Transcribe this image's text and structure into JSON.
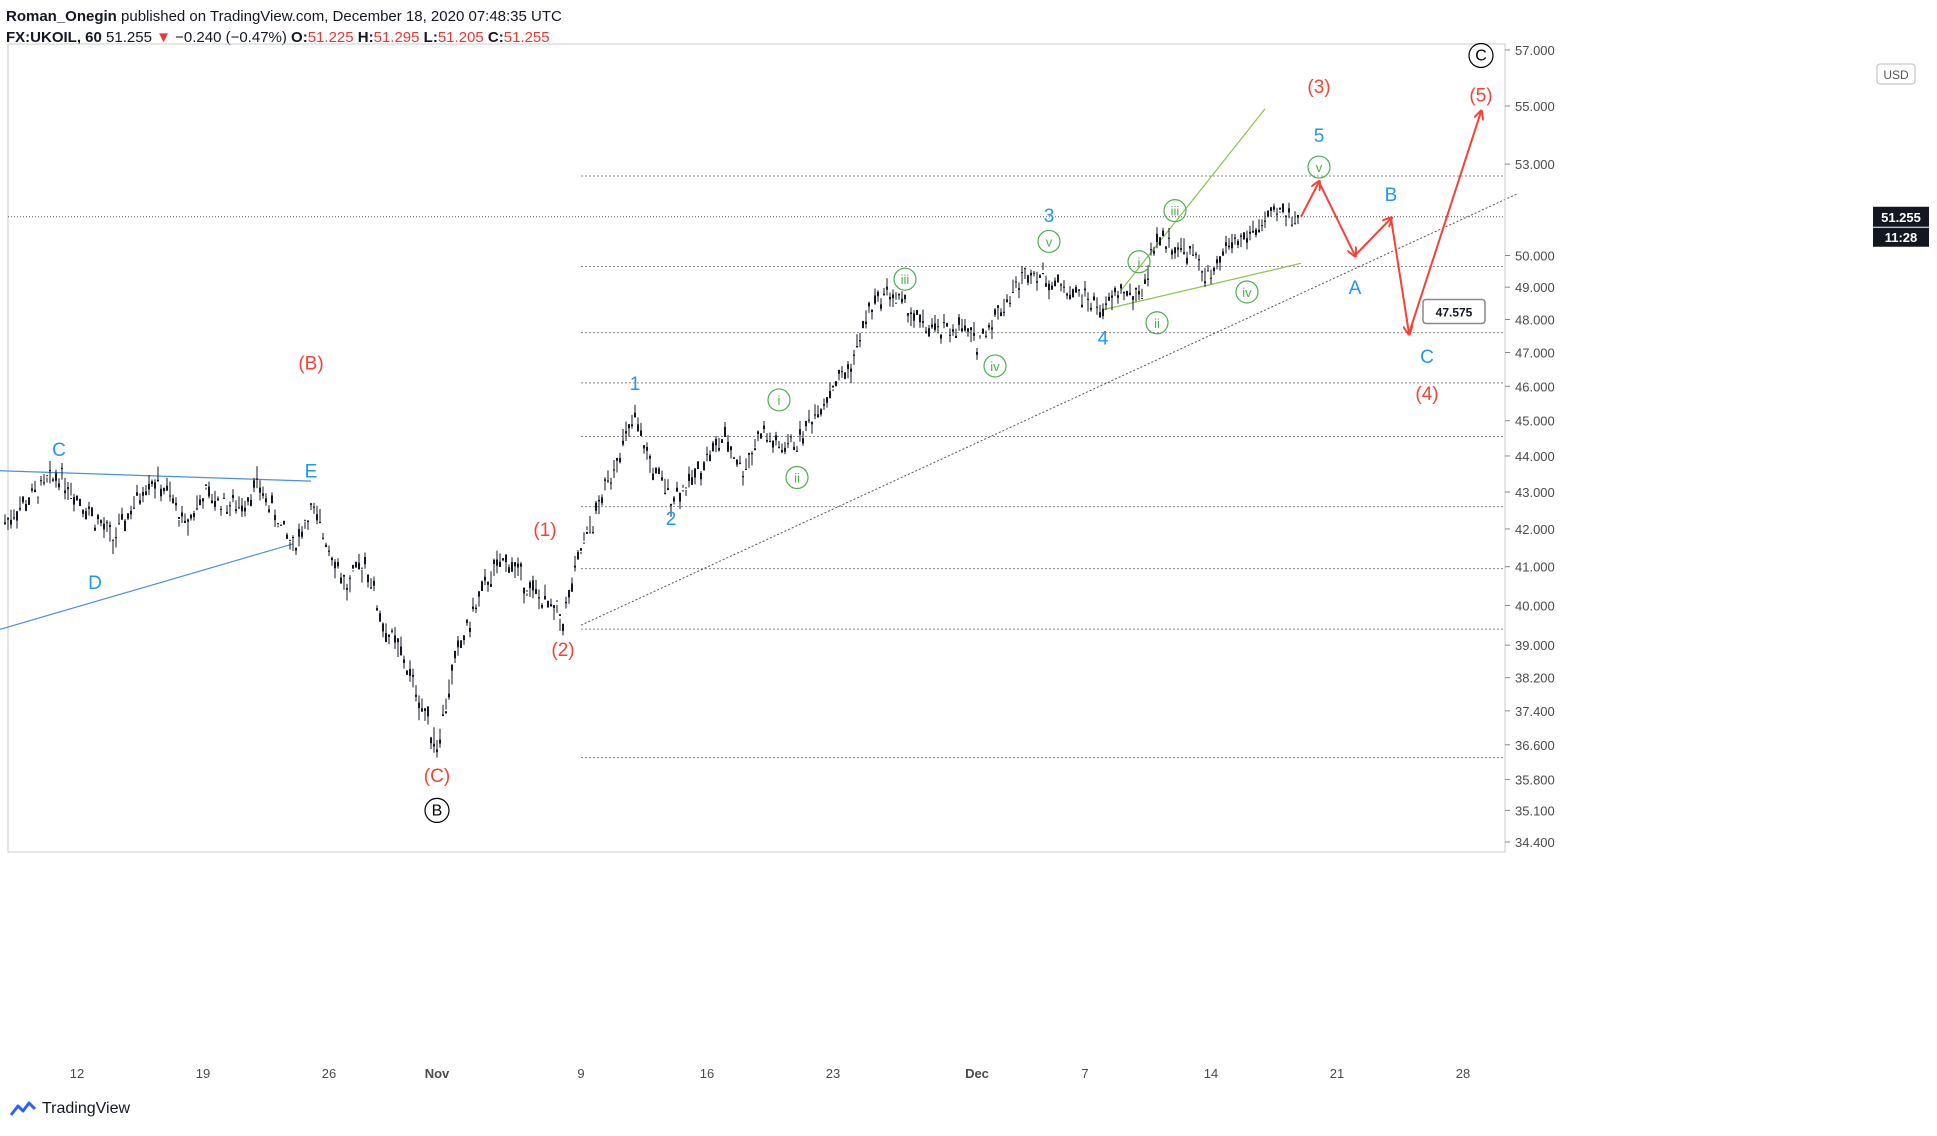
{
  "header": {
    "author": "Roman_Onegin",
    "published_text": "published on TradingView.com, December 18, 2020 07:48:35 UTC",
    "symbol": "FX:UKOIL, 60",
    "last": "51.255",
    "change_arrow": "▼",
    "change": "−0.240 (−0.47%)",
    "o_label": "O:",
    "o_value": "51.225",
    "h_label": "H:",
    "h_value": "51.295",
    "l_label": "L:",
    "l_value": "51.205",
    "c_label": "C:",
    "c_value": "51.255"
  },
  "footer": {
    "brand": "TradingView",
    "logo_icon": "tradingview-logo-icon"
  },
  "chart_data": {
    "type": "candlestick",
    "symbol": "FX:UKOIL",
    "timeframe": "60",
    "currency": "USD",
    "x_ticks": [
      "12",
      "19",
      "26",
      "Nov",
      "9",
      "16",
      "23",
      "Dec",
      "7",
      "14",
      "21",
      "28"
    ],
    "y_ticks": [
      "57.000",
      "55.000",
      "53.000",
      "51.255",
      "50.000",
      "49.000",
      "48.000",
      "47.000",
      "46.000",
      "45.000",
      "44.000",
      "43.000",
      "42.000",
      "41.000",
      "40.000",
      "39.000",
      "38.200",
      "37.400",
      "36.600",
      "35.800",
      "35.100",
      "34.400"
    ],
    "last_price_label": "51.255",
    "countdown_label": "11:28",
    "ylim": [
      34.1,
      57.2
    ],
    "price_path": [
      [
        "Oct 8",
        42.2
      ],
      [
        "Oct 10",
        43.1
      ],
      [
        "Oct 11",
        43.5
      ],
      [
        "Oct 13",
        42.3
      ],
      [
        "Oct 14",
        41.7
      ],
      [
        "Oct 15",
        42.5
      ],
      [
        "Oct 16",
        43.4
      ],
      [
        "Oct 17",
        43.0
      ],
      [
        "Oct 18",
        42.1
      ],
      [
        "Oct 19",
        42.9
      ],
      [
        "Oct 21",
        42.6
      ],
      [
        "Oct 22",
        43.2
      ],
      [
        "Oct 23",
        42.4
      ],
      [
        "Oct 24",
        41.5
      ],
      [
        "Oct 25",
        42.5
      ],
      [
        "Oct 26",
        41.6
      ],
      [
        "Oct 27",
        40.4
      ],
      [
        "Oct 28",
        41.2
      ],
      [
        "Oct 29",
        39.5
      ],
      [
        "Oct 30",
        38.8
      ],
      [
        "Oct 31",
        37.7
      ],
      [
        "Nov 1",
        36.6
      ],
      [
        "Nov 2",
        38.6
      ],
      [
        "Nov 3",
        39.8
      ],
      [
        "Nov 4",
        40.8
      ],
      [
        "Nov 5",
        41.2
      ],
      [
        "Nov 6",
        40.5
      ],
      [
        "Nov 8",
        39.6
      ],
      [
        "Nov 9",
        41.4
      ],
      [
        "Nov 10",
        42.6
      ],
      [
        "Nov 11",
        44.0
      ],
      [
        "Nov 12",
        45.0
      ],
      [
        "Nov 13",
        43.6
      ],
      [
        "Nov 14",
        42.9
      ],
      [
        "Nov 15",
        43.2
      ],
      [
        "Nov 16",
        44.0
      ],
      [
        "Nov 17",
        44.5
      ],
      [
        "Nov 18",
        43.6
      ],
      [
        "Nov 19",
        44.7
      ],
      [
        "Nov 20",
        44.2
      ],
      [
        "Nov 21",
        44.4
      ],
      [
        "Nov 22",
        45.2
      ],
      [
        "Nov 23",
        46.0
      ],
      [
        "Nov 24",
        46.6
      ],
      [
        "Nov 25",
        48.3
      ],
      [
        "Nov 26",
        48.9
      ],
      [
        "Nov 27",
        48.4
      ],
      [
        "Nov 28",
        47.8
      ],
      [
        "Nov 29",
        47.6
      ],
      [
        "Nov 30",
        47.8
      ],
      [
        "Dec 1",
        47.3
      ],
      [
        "Dec 2",
        48.1
      ],
      [
        "Dec 3",
        48.9
      ],
      [
        "Dec 4",
        49.6
      ],
      [
        "Dec 5",
        49.2
      ],
      [
        "Dec 7",
        48.7
      ],
      [
        "Dec 8",
        48.3
      ],
      [
        "Dec 9",
        48.9
      ],
      [
        "Dec 10",
        48.6
      ],
      [
        "Dec 11",
        50.6
      ],
      [
        "Dec 12",
        50.3
      ],
      [
        "Dec 13",
        50.0
      ],
      [
        "Dec 14",
        49.2
      ],
      [
        "Dec 15",
        50.4
      ],
      [
        "Dec 16",
        50.6
      ],
      [
        "Dec 17",
        51.1
      ],
      [
        "Dec 18",
        51.4
      ],
      [
        "Dec 19",
        51.25
      ]
    ],
    "projection_path": [
      [
        "Dec 19",
        51.25
      ],
      [
        "Dec 20",
        52.4
      ],
      [
        "Dec 22",
        50.0
      ],
      [
        "Dec 24",
        51.2
      ],
      [
        "Dec 25",
        47.575
      ],
      [
        "Dec 29",
        54.8
      ]
    ],
    "target_label": "47.575",
    "level_lines": [
      52.6,
      49.65,
      47.6,
      46.1,
      44.55,
      42.6,
      40.95,
      39.4,
      36.3
    ],
    "trend_lines": [
      {
        "color": "#4a90e2",
        "from": [
          "Oct 7",
          43.6
        ],
        "to": [
          "Oct 25",
          43.3
        ]
      },
      {
        "color": "#4a90e2",
        "from": [
          "Oct 7",
          39.3
        ],
        "to": [
          "Oct 24",
          41.6
        ]
      },
      {
        "color": "#8bc34a",
        "from": [
          "Dec 9",
          48.9
        ],
        "to": [
          "Dec 17",
          54.9
        ]
      },
      {
        "color": "#8bc34a",
        "from": [
          "Dec 8",
          48.3
        ],
        "to": [
          "Dec 19",
          49.75
        ]
      },
      {
        "color": "#555555",
        "dotted": true,
        "from": [
          "Nov 9",
          39.5
        ],
        "to": [
          "Dec 31",
          52.0
        ]
      }
    ],
    "wave_labels": [
      {
        "text": "C",
        "color": "#2196f3",
        "at": [
          "Oct 11",
          44.2
        ]
      },
      {
        "text": "D",
        "color": "#2196f3",
        "at": [
          "Oct 13",
          40.6
        ]
      },
      {
        "text": "E",
        "color": "#2196f3",
        "at": [
          "Oct 25",
          43.6
        ]
      },
      {
        "text": "(B)",
        "color": "#f44336",
        "at": [
          "Oct 25",
          46.7
        ]
      },
      {
        "text": "(C)",
        "color": "#f44336",
        "at": [
          "Nov 1",
          35.9
        ]
      },
      {
        "text": "B",
        "color": "#000000",
        "circle": true,
        "at": [
          "Nov 1",
          35.1
        ]
      },
      {
        "text": "(1)",
        "color": "#f44336",
        "at": [
          "Nov 7",
          42.0
        ]
      },
      {
        "text": "(2)",
        "color": "#f44336",
        "at": [
          "Nov 8",
          38.9
        ]
      },
      {
        "text": "1",
        "color": "#2196f3",
        "at": [
          "Nov 12",
          46.1
        ]
      },
      {
        "text": "2",
        "color": "#2196f3",
        "at": [
          "Nov 14",
          42.3
        ]
      },
      {
        "text": "i",
        "color": "#4caf50",
        "circle": true,
        "at": [
          "Nov 20",
          45.6
        ]
      },
      {
        "text": "ii",
        "color": "#4caf50",
        "circle": true,
        "at": [
          "Nov 21",
          43.4
        ]
      },
      {
        "text": "iii",
        "color": "#4caf50",
        "circle": true,
        "at": [
          "Nov 27",
          49.25
        ]
      },
      {
        "text": "iv",
        "color": "#4caf50",
        "circle": true,
        "at": [
          "Dec 2",
          46.6
        ]
      },
      {
        "text": "v",
        "color": "#4caf50",
        "circle": true,
        "at": [
          "Dec 5",
          50.45
        ]
      },
      {
        "text": "3",
        "color": "#2196f3",
        "at": [
          "Dec 5",
          51.3
        ]
      },
      {
        "text": "4",
        "color": "#2196f3",
        "at": [
          "Dec 8",
          47.45
        ]
      },
      {
        "text": "i",
        "color": "#4caf50",
        "circle": true,
        "at": [
          "Dec 10",
          49.8
        ]
      },
      {
        "text": "ii",
        "color": "#4caf50",
        "circle": true,
        "at": [
          "Dec 11",
          47.9
        ]
      },
      {
        "text": "iii",
        "color": "#4caf50",
        "circle": true,
        "at": [
          "Dec 12",
          51.45
        ]
      },
      {
        "text": "iv",
        "color": "#4caf50",
        "circle": true,
        "at": [
          "Dec 16",
          48.85
        ]
      },
      {
        "text": "v",
        "color": "#4caf50",
        "circle": true,
        "at": [
          "Dec 20",
          52.9
        ]
      },
      {
        "text": "5",
        "color": "#2196f3",
        "at": [
          "Dec 20",
          54.0
        ]
      },
      {
        "text": "(3)",
        "color": "#f44336",
        "at": [
          "Dec 20",
          55.7
        ]
      },
      {
        "text": "A",
        "color": "#2196f3",
        "at": [
          "Dec 22",
          49.0
        ]
      },
      {
        "text": "B",
        "color": "#2196f3",
        "at": [
          "Dec 24",
          52.0
        ]
      },
      {
        "text": "C",
        "color": "#2196f3",
        "at": [
          "Dec 26",
          46.9
        ]
      },
      {
        "text": "(4)",
        "color": "#f44336",
        "at": [
          "Dec 26",
          45.8
        ]
      },
      {
        "text": "(5)",
        "color": "#f44336",
        "at": [
          "Dec 29",
          55.4
        ]
      },
      {
        "text": "C",
        "color": "#000000",
        "circle": true,
        "at": [
          "Dec 29",
          56.8
        ]
      }
    ],
    "colors": {
      "up_candle": "#131722",
      "projection": "#f44336",
      "blue_wave": "#2196f3",
      "red_wave": "#f44336",
      "green_wave": "#4caf50",
      "grid_level": "#888888",
      "last_price_bg": "#131722",
      "header_red": "#e53935"
    }
  }
}
